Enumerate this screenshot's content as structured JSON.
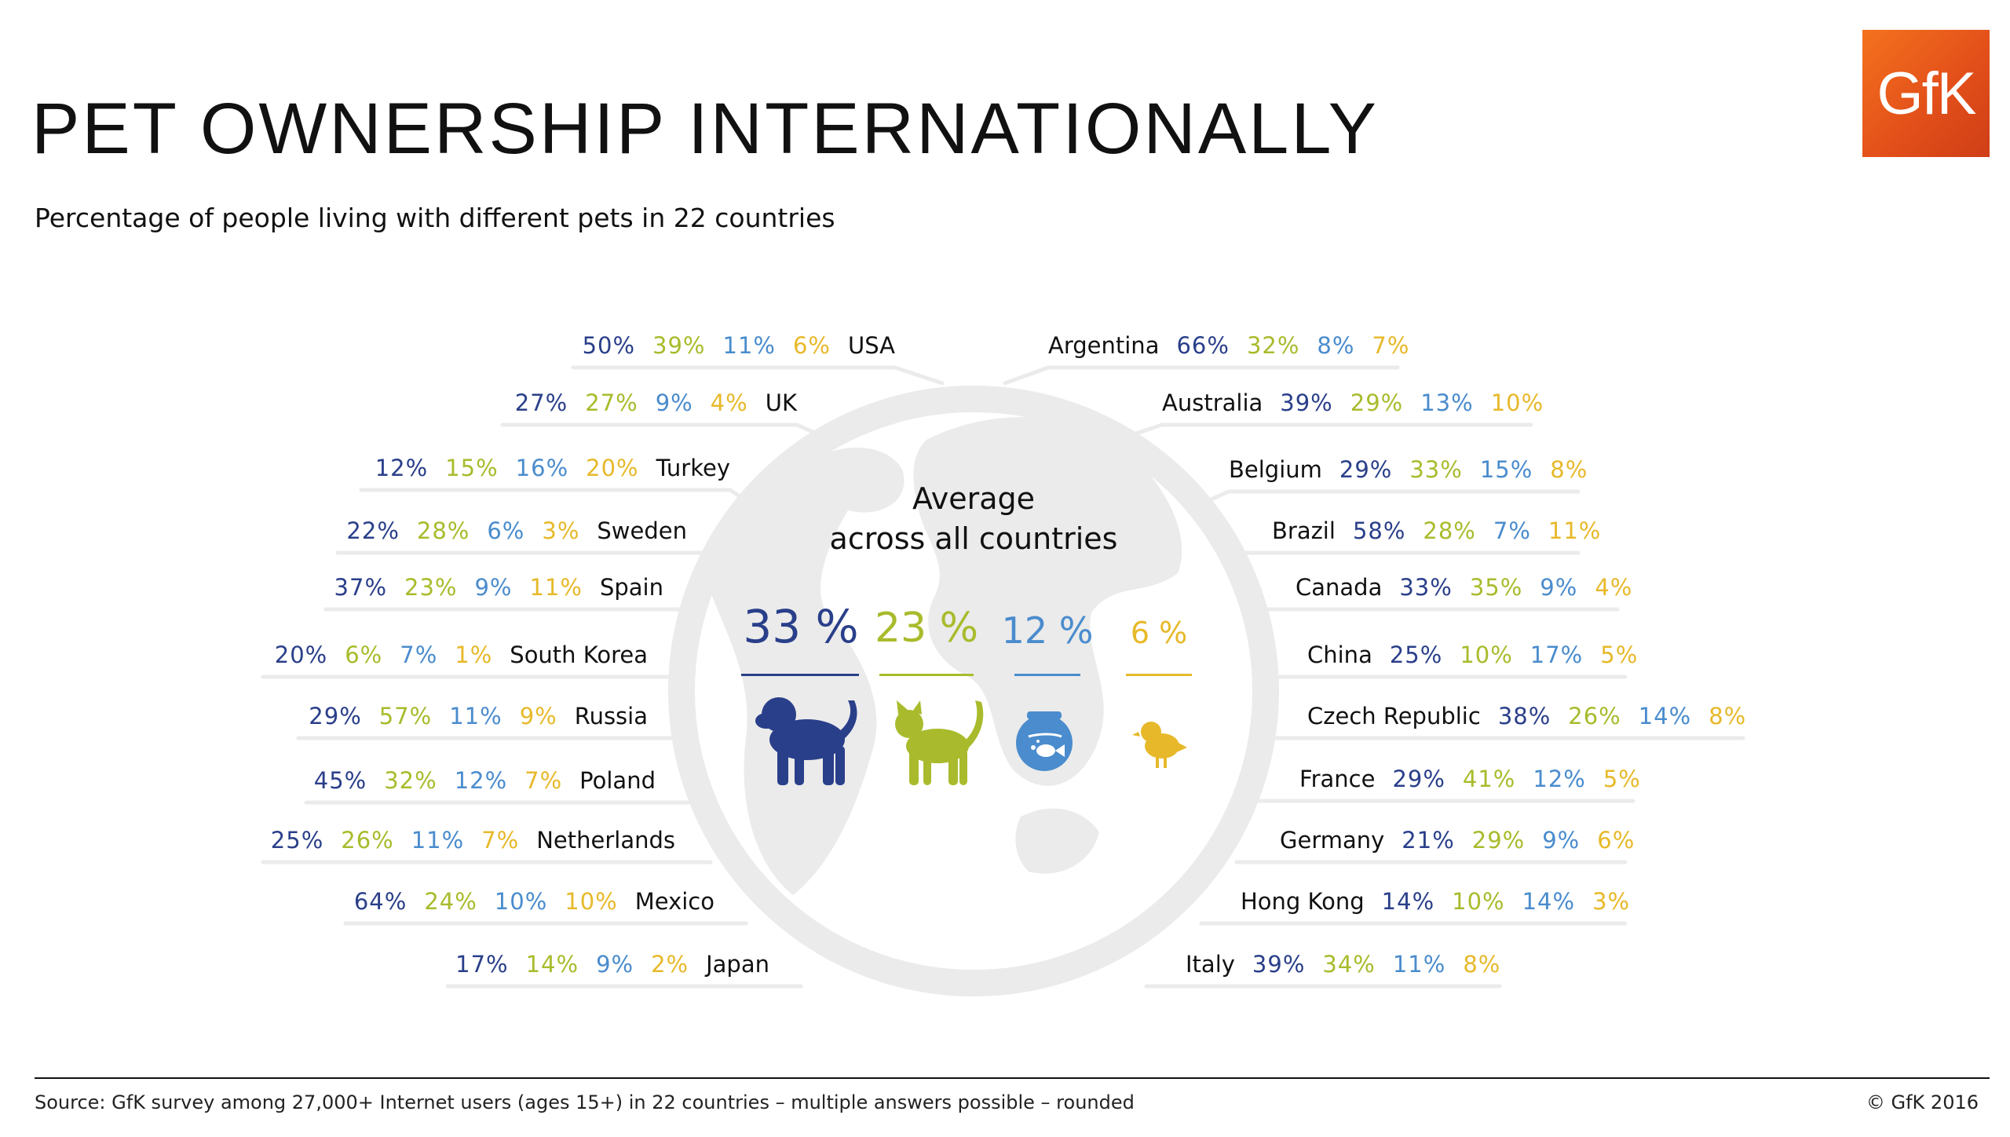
{
  "title": "PET OWNERSHIP INTERNATIONALLY",
  "subtitle": "Percentage of people living with different pets in 22 countries",
  "logo_text": "GfK",
  "center_title_line1": "Average",
  "center_title_line2": "across all countries",
  "source": "Source:  GfK survey among 27,000+ Internet users (ages 15+) in 22 countries – multiple answers possible – rounded",
  "copyright": "© GfK 2016",
  "colors": {
    "dog": "#2a3f8a",
    "cat": "#a9bb2c",
    "fish": "#4a8ccd",
    "bird": "#e7b92a",
    "globe": "#ebebeb"
  },
  "icons": [
    "dog-icon",
    "cat-icon",
    "fishbowl-icon",
    "bird-icon"
  ],
  "chart_data": {
    "type": "table",
    "columns": [
      "Dog",
      "Cat",
      "Fish",
      "Bird"
    ],
    "average": {
      "dog": "33 %",
      "cat": "23 %",
      "fish": "12 %",
      "bird": "6 %"
    },
    "left_countries": [
      {
        "country": "USA",
        "values": [
          "50%",
          "39%",
          "11%",
          "6%"
        ]
      },
      {
        "country": "UK",
        "values": [
          "27%",
          "27%",
          "9%",
          "4%"
        ]
      },
      {
        "country": "Turkey",
        "values": [
          "12%",
          "15%",
          "16%",
          "20%"
        ]
      },
      {
        "country": "Sweden",
        "values": [
          "22%",
          "28%",
          "6%",
          "3%"
        ]
      },
      {
        "country": "Spain",
        "values": [
          "37%",
          "23%",
          "9%",
          "11%"
        ]
      },
      {
        "country": "South Korea",
        "values": [
          "20%",
          "6%",
          "7%",
          "1%"
        ]
      },
      {
        "country": "Russia",
        "values": [
          "29%",
          "57%",
          "11%",
          "9%"
        ]
      },
      {
        "country": "Poland",
        "values": [
          "45%",
          "32%",
          "12%",
          "7%"
        ]
      },
      {
        "country": "Netherlands",
        "values": [
          "25%",
          "26%",
          "11%",
          "7%"
        ]
      },
      {
        "country": "Mexico",
        "values": [
          "64%",
          "24%",
          "10%",
          "10%"
        ]
      },
      {
        "country": "Japan",
        "values": [
          "17%",
          "14%",
          "9%",
          "2%"
        ]
      }
    ],
    "right_countries": [
      {
        "country": "Argentina",
        "values": [
          "66%",
          "32%",
          "8%",
          "7%"
        ]
      },
      {
        "country": "Australia",
        "values": [
          "39%",
          "29%",
          "13%",
          "10%"
        ]
      },
      {
        "country": "Belgium",
        "values": [
          "29%",
          "33%",
          "15%",
          "8%"
        ]
      },
      {
        "country": "Brazil",
        "values": [
          "58%",
          "28%",
          "7%",
          "11%"
        ]
      },
      {
        "country": "Canada",
        "values": [
          "33%",
          "35%",
          "9%",
          "4%"
        ]
      },
      {
        "country": "China",
        "values": [
          "25%",
          "10%",
          "17%",
          "5%"
        ]
      },
      {
        "country": "Czech Republic",
        "values": [
          "38%",
          "26%",
          "14%",
          "8%"
        ]
      },
      {
        "country": "France",
        "values": [
          "29%",
          "41%",
          "12%",
          "5%"
        ]
      },
      {
        "country": "Germany",
        "values": [
          "21%",
          "29%",
          "9%",
          "6%"
        ]
      },
      {
        "country": "Hong Kong",
        "values": [
          "14%",
          "10%",
          "14%",
          "3%"
        ]
      },
      {
        "country": "Italy",
        "values": [
          "39%",
          "34%",
          "11%",
          "8%"
        ]
      }
    ]
  }
}
